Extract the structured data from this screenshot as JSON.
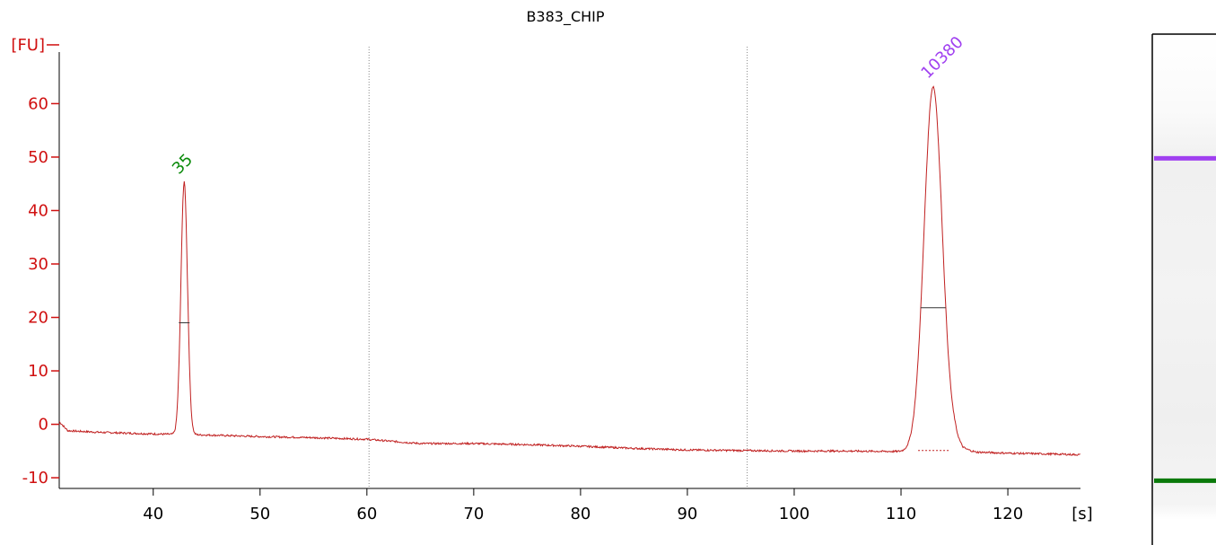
{
  "colors": {
    "axis": "#d01010",
    "trace": "#c02020",
    "peak_35": "#0a8a0a",
    "peak_10380": "#a040f0",
    "grid": "#888888",
    "gel_top_marker": "#a040f0",
    "gel_bottom_marker": "#0a7a0a"
  },
  "chart_data": {
    "type": "line",
    "title": "B383_CHIP",
    "ylabel": "[FU]",
    "xlabel": "[s]",
    "xlim": [
      31.2,
      126.8
    ],
    "ylim": [
      -12,
      72
    ],
    "xticks": [
      40,
      50,
      60,
      70,
      80,
      90,
      100,
      110,
      120
    ],
    "yticks": [
      -10,
      0,
      10,
      20,
      30,
      40,
      50,
      60
    ],
    "grid": "vertical dotted lines at 60.2 and 95.6",
    "vlines": [
      60.2,
      95.6
    ],
    "baseline": [
      [
        31.2,
        0.5
      ],
      [
        32,
        -1.2
      ],
      [
        35,
        -1.5
      ],
      [
        40,
        -1.8
      ],
      [
        42.5,
        -1.9
      ],
      [
        45,
        -2.0
      ],
      [
        50,
        -2.3
      ],
      [
        55,
        -2.5
      ],
      [
        60,
        -2.8
      ],
      [
        65,
        -3.6
      ],
      [
        70,
        -3.6
      ],
      [
        75,
        -3.8
      ],
      [
        80,
        -4.1
      ],
      [
        85,
        -4.5
      ],
      [
        90,
        -4.8
      ],
      [
        95,
        -4.9
      ],
      [
        100,
        -5.0
      ],
      [
        105,
        -5.0
      ],
      [
        110,
        -5.1
      ],
      [
        111.8,
        -4.9
      ],
      [
        114.5,
        -3.0
      ],
      [
        115,
        -2.8
      ],
      [
        115.8,
        -4.5
      ],
      [
        117,
        -5.2
      ],
      [
        120,
        -5.4
      ],
      [
        125,
        -5.6
      ],
      [
        126.8,
        -5.7
      ]
    ],
    "peaks": [
      {
        "label": "35",
        "x": 42.9,
        "y": 45.3,
        "width": 0.8
      },
      {
        "label": "10380",
        "x": 113.0,
        "y": 63.2,
        "width": 2.2
      }
    ],
    "peak_marks": [
      {
        "x": 42.9,
        "y": 19.0
      },
      {
        "x": 113.0,
        "y": 21.8
      }
    ],
    "gel_lane": {
      "bands": [
        {
          "name": "upper marker",
          "color": "#a040f0",
          "position": 0.244
        },
        {
          "name": "lower marker",
          "color": "#0a7a0a",
          "position": 0.875
        }
      ]
    }
  }
}
